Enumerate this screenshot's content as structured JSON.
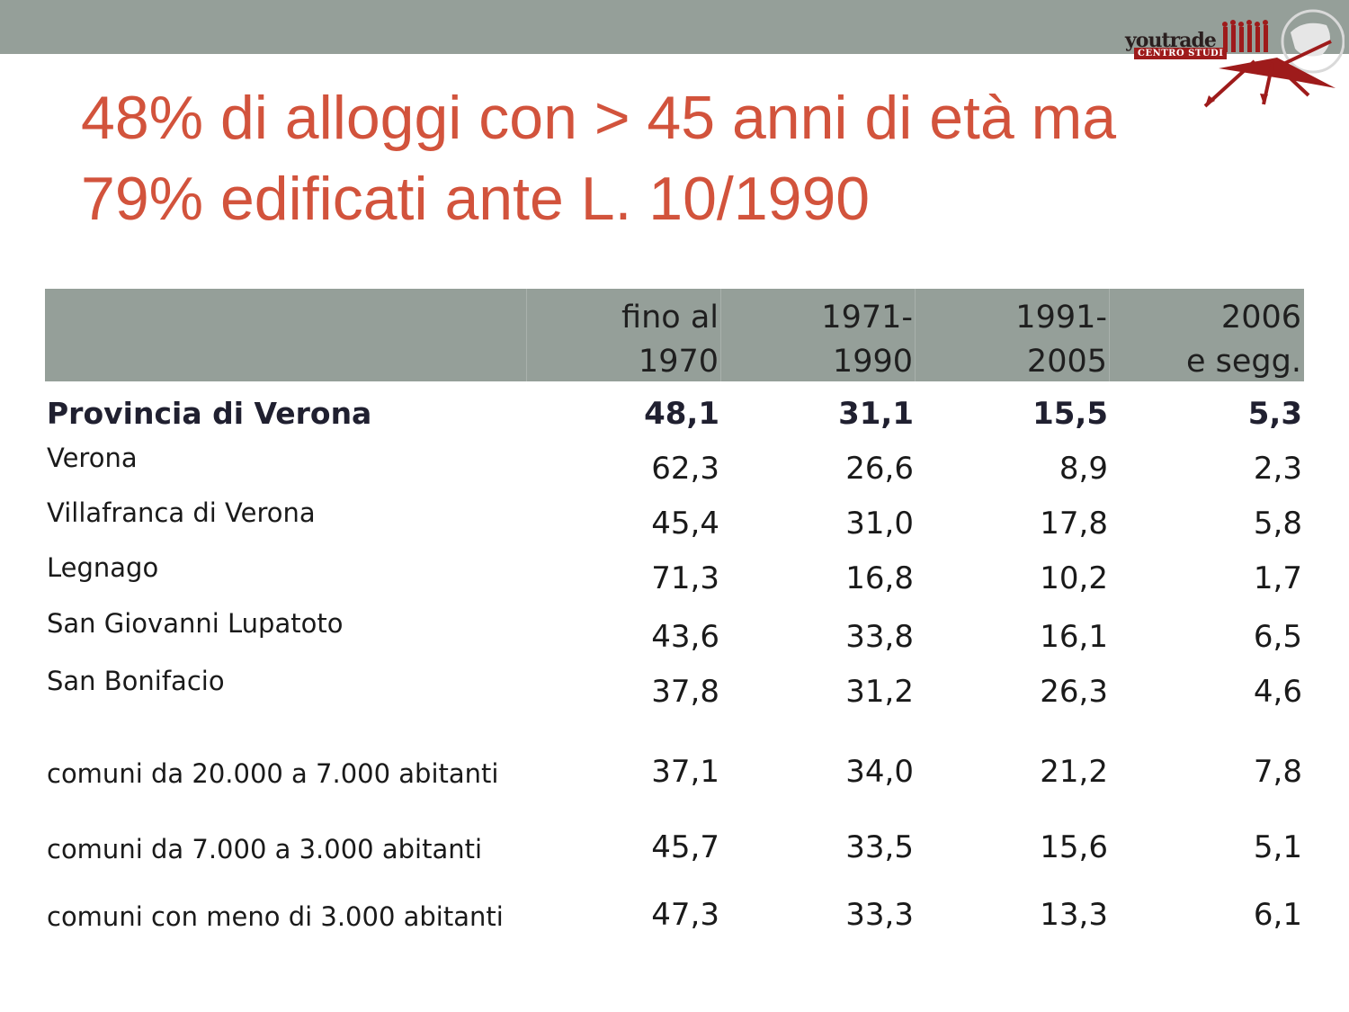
{
  "header": {
    "bar_color": "#959f99"
  },
  "logo": {
    "brand": "youtrade",
    "subtitle": "CENTRO STUDI"
  },
  "title": {
    "line1": "48% di alloggi con > 45 anni di età ma",
    "line2": "79% edificati ante L. 10/1990",
    "color": "#d2533c"
  },
  "table": {
    "columns": [
      {
        "line1": "fino al",
        "line2": "1970"
      },
      {
        "line1": "1971-",
        "line2": "1990"
      },
      {
        "line1": "1991-",
        "line2": "2005"
      },
      {
        "line1": "2006",
        "line2": "e segg."
      }
    ],
    "rows": [
      {
        "label": "Provincia di Verona",
        "values": [
          "48,1",
          "31,1",
          "15,5",
          "5,3"
        ],
        "bold": true
      },
      {
        "label": "Verona",
        "values": [
          "62,3",
          "26,6",
          "8,9",
          "2,3"
        ]
      },
      {
        "label": "Villafranca di Verona",
        "values": [
          "45,4",
          "31,0",
          "17,8",
          "5,8"
        ]
      },
      {
        "label": "Legnago",
        "values": [
          "71,3",
          "16,8",
          "10,2",
          "1,7"
        ]
      },
      {
        "label": "San Giovanni Lupatoto",
        "values": [
          "43,6",
          "33,8",
          "16,1",
          "6,5"
        ]
      },
      {
        "label": "San Bonifacio",
        "values": [
          "37,8",
          "31,2",
          "26,3",
          "4,6"
        ]
      },
      {
        "label": "comuni da 20.000 a 7.000 abitanti",
        "values": [
          "37,1",
          "34,0",
          "21,2",
          "7,8"
        ]
      },
      {
        "label": "comuni da 7.000 a 3.000 abitanti",
        "values": [
          "45,7",
          "33,5",
          "15,6",
          "5,1"
        ]
      },
      {
        "label": "comuni con meno di 3.000 abitanti",
        "values": [
          "47,3",
          "33,3",
          "13,3",
          "6,1"
        ]
      }
    ]
  }
}
